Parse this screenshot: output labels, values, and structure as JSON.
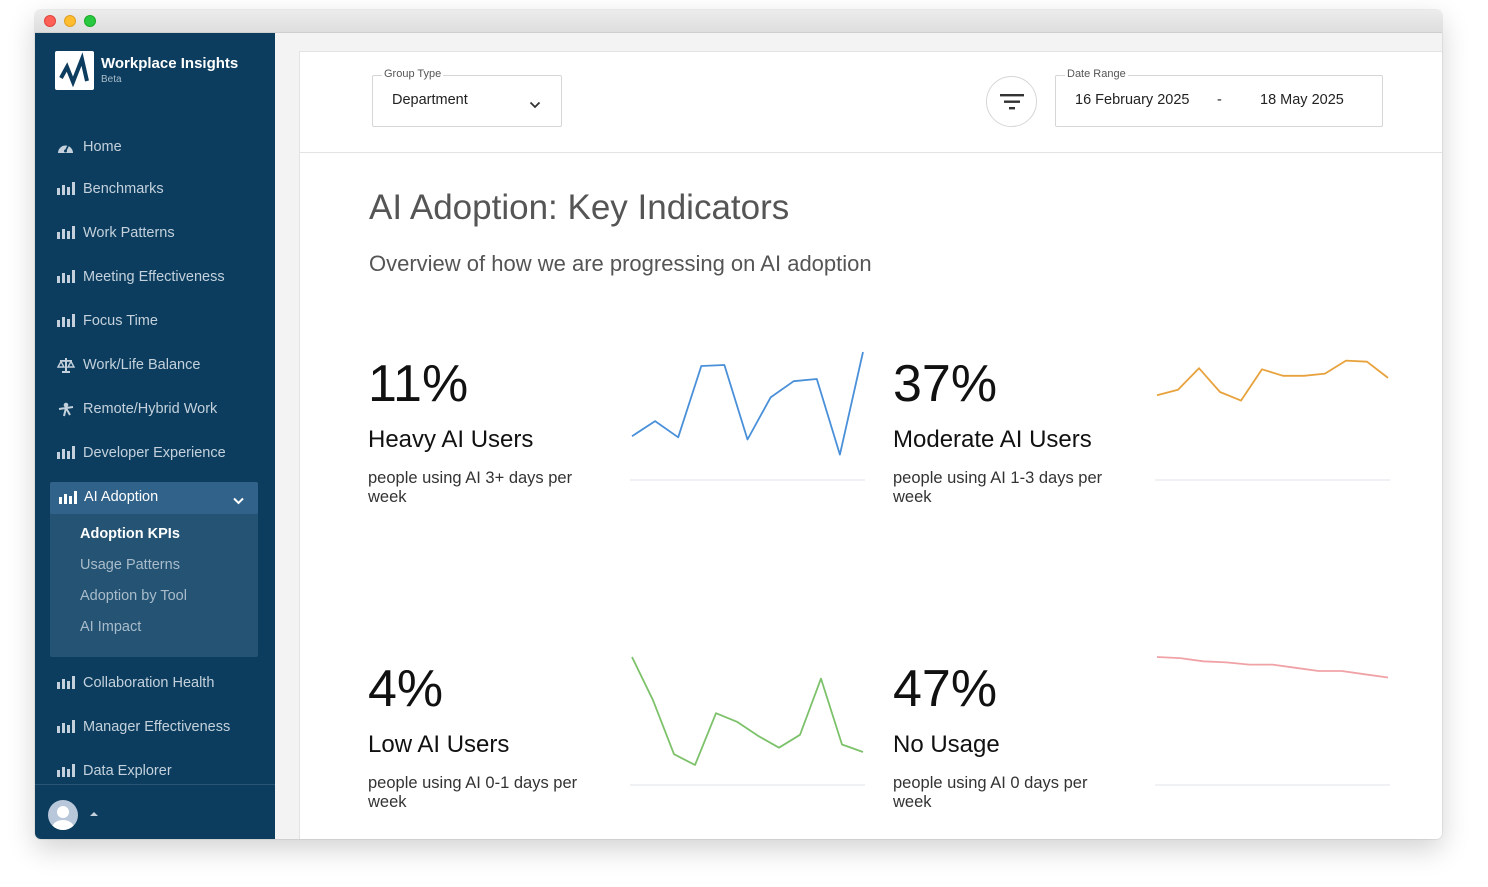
{
  "app": {
    "title": "Workplace Insights",
    "badge": "Beta"
  },
  "sidebar": {
    "items": [
      {
        "label": "Home",
        "icon": "dashboard-icon"
      },
      {
        "label": "Benchmarks",
        "icon": "bar-chart-icon"
      },
      {
        "label": "Work Patterns",
        "icon": "bar-chart-icon"
      },
      {
        "label": "Meeting Effectiveness",
        "icon": "bar-chart-icon"
      },
      {
        "label": "Focus Time",
        "icon": "bar-chart-icon"
      },
      {
        "label": "Work/Life Balance",
        "icon": "scale-icon"
      },
      {
        "label": "Remote/Hybrid Work",
        "icon": "remote-icon"
      },
      {
        "label": "Developer Experience",
        "icon": "bar-chart-icon"
      }
    ],
    "active_group": {
      "label": "AI Adoption",
      "sub_items": [
        {
          "label": "Adoption KPIs",
          "current": true
        },
        {
          "label": "Usage Patterns"
        },
        {
          "label": "Adoption by Tool"
        },
        {
          "label": "AI Impact"
        }
      ]
    },
    "items_after": [
      {
        "label": "Collaboration Health"
      },
      {
        "label": "Manager Effectiveness"
      },
      {
        "label": "Data Explorer"
      }
    ]
  },
  "filters": {
    "group_type_label": "Group Type",
    "group_type_value": "Department",
    "date_range_label": "Date Range",
    "date_start": "16 February 2025",
    "date_separator": "-",
    "date_end": "18 May 2025"
  },
  "page": {
    "title": "AI Adoption: Key Indicators",
    "subtitle": "Overview of how we are progressing on AI adoption"
  },
  "kpis": [
    {
      "value": "11%",
      "name": "Heavy AI Users",
      "desc": "people using AI 3+ days per week",
      "color": "#4a90d9",
      "trend": [
        0.22,
        0.36,
        0.21,
        0.87,
        0.88,
        0.19,
        0.58,
        0.73,
        0.75,
        0.05,
        1.0
      ]
    },
    {
      "value": "37%",
      "name": "Moderate AI Users",
      "desc": "people using AI 1-3 days per week",
      "color": "#e8a23d",
      "trend": [
        0.6,
        0.65,
        0.85,
        0.63,
        0.55,
        0.84,
        0.78,
        0.78,
        0.8,
        0.92,
        0.91,
        0.76
      ]
    },
    {
      "value": "4%",
      "name": "Low AI Users",
      "desc": "people using AI 0-1 days per week",
      "color": "#7dc26b",
      "trend": [
        1.0,
        0.6,
        0.1,
        0.0,
        0.48,
        0.4,
        0.27,
        0.16,
        0.28,
        0.8,
        0.19,
        0.12
      ]
    },
    {
      "value": "47%",
      "name": "No Usage",
      "desc": "people using AI 0 days per week",
      "color": "#f0a2a6",
      "trend": [
        1.0,
        0.99,
        0.96,
        0.95,
        0.93,
        0.93,
        0.9,
        0.87,
        0.87,
        0.84,
        0.81
      ]
    }
  ]
}
